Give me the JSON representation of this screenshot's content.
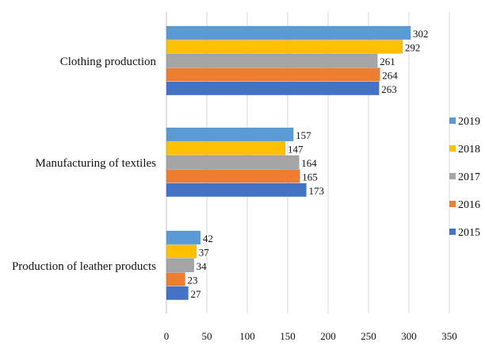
{
  "chart_data": {
    "type": "bar",
    "orientation": "horizontal",
    "title": "",
    "xlabel": "",
    "ylabel": "",
    "categories": [
      "Clothing production",
      "Manufacturing of textiles",
      "Production of leather products"
    ],
    "series": [
      {
        "name": "2019",
        "color": "#5b9bd5",
        "values": [
          302,
          157,
          42
        ]
      },
      {
        "name": "2018",
        "color": "#ffc000",
        "values": [
          292,
          147,
          37
        ]
      },
      {
        "name": "2017",
        "color": "#a5a5a5",
        "values": [
          261,
          164,
          34
        ]
      },
      {
        "name": "2016",
        "color": "#ed7d31",
        "values": [
          264,
          165,
          23
        ]
      },
      {
        "name": "2015",
        "color": "#4472c4",
        "values": [
          263,
          173,
          27
        ]
      }
    ],
    "xlim": [
      0,
      350
    ],
    "xticks": [
      0,
      50,
      100,
      150,
      200,
      250,
      300,
      350
    ],
    "grid": true,
    "legend_position": "right",
    "data_labels": true
  }
}
